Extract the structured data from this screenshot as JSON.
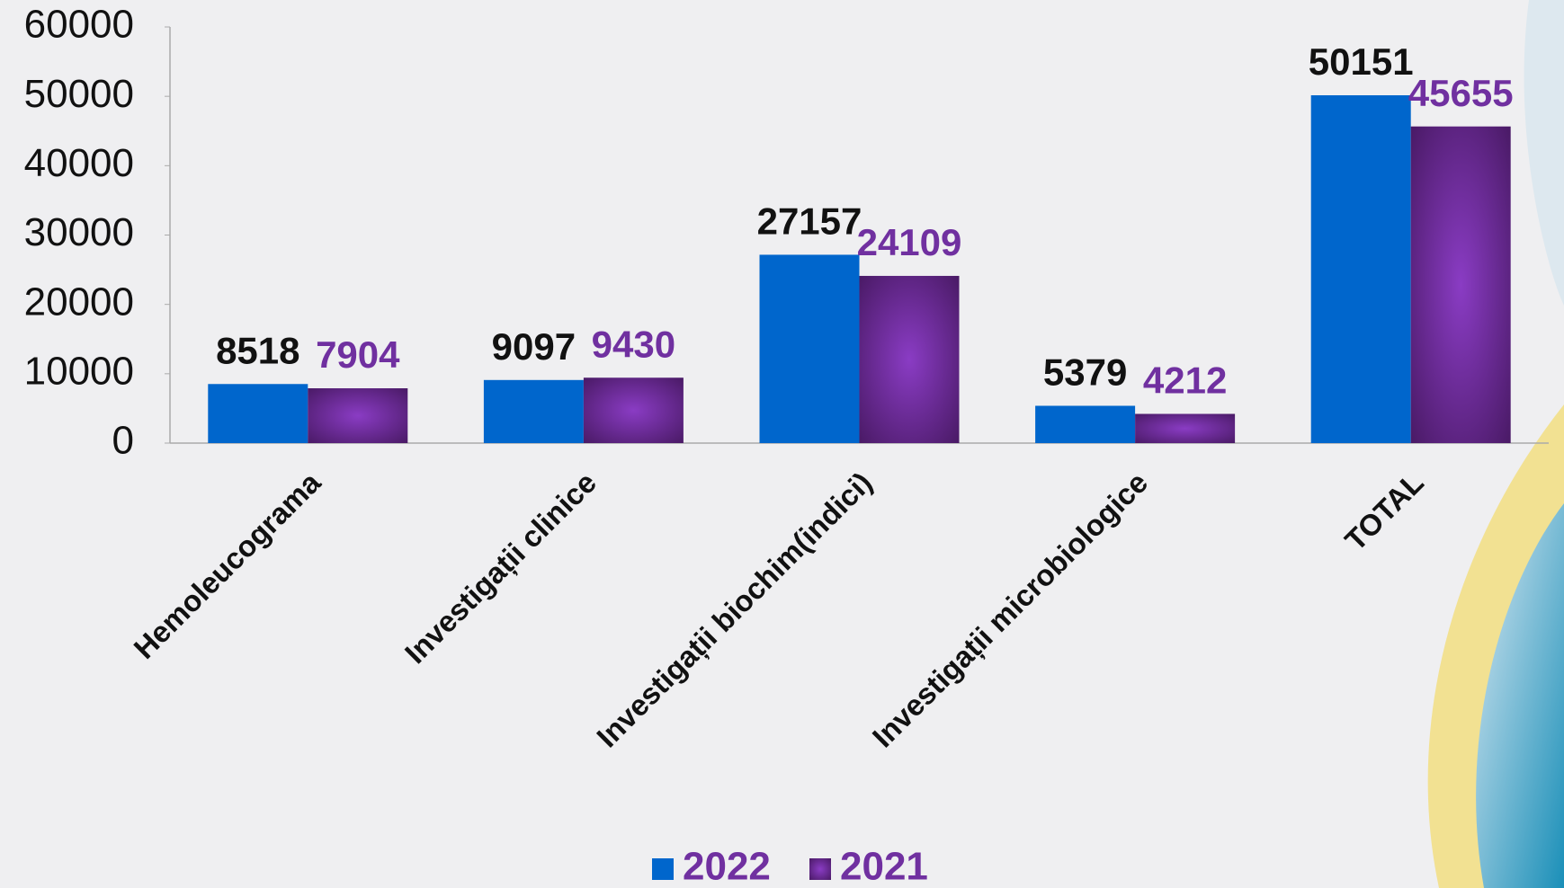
{
  "chart_data": {
    "type": "bar",
    "categories": [
      "Hemoleucograma",
      "Investigații clinice",
      "Investigații biochim(indici)",
      "Investigații microbiologice",
      "TOTAL"
    ],
    "series": [
      {
        "name": "2022",
        "color": "#0066cc",
        "label_color": "#111111",
        "values": [
          8518,
          9097,
          27157,
          5379,
          50151
        ]
      },
      {
        "name": "2021",
        "color": "#6a2a9a",
        "label_color": "#7030a0",
        "values": [
          7904,
          9430,
          24109,
          4212,
          45655
        ]
      }
    ],
    "ylim": [
      0,
      60000
    ],
    "yticks": [
      0,
      10000,
      20000,
      30000,
      40000,
      50000,
      60000
    ],
    "grid": false,
    "legend": "bottom"
  }
}
